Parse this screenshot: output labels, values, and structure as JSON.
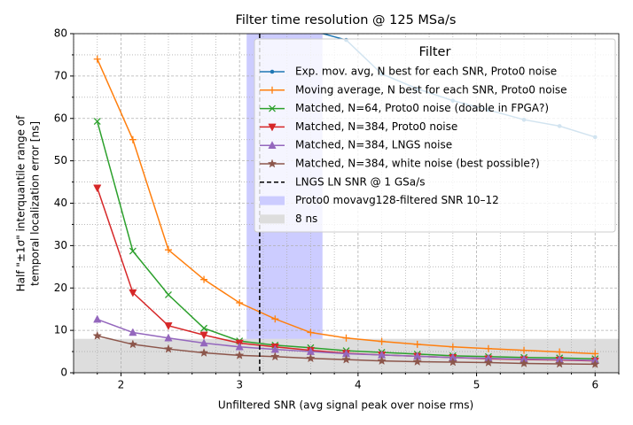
{
  "chart_data": {
    "type": "line",
    "title": "Filter time resolution @ 125 MSa/s",
    "xlabel": "Unfiltered SNR (avg signal peak over noise rms)",
    "ylabel": [
      "Half \"±1σ\" interquantile range of",
      "temporal localization error [ns]"
    ],
    "x": [
      1.8,
      2.1,
      2.4,
      2.7,
      3.0,
      3.3,
      3.6,
      3.9,
      4.2,
      4.5,
      4.8,
      5.1,
      5.4,
      5.7,
      6.0
    ],
    "series": [
      {
        "name": "Exp. mov. avg, N best for each SNR, Proto0 noise",
        "color": "#1f77b4",
        "marker": "point",
        "values": [
          null,
          null,
          null,
          null,
          null,
          null,
          80.8,
          78.5,
          70.5,
          67.0,
          64.2,
          62.0,
          59.7,
          58.2,
          55.6
        ]
      },
      {
        "name": "Moving average, N best for each SNR, Proto0 noise",
        "color": "#ff7f0e",
        "marker": "plus",
        "values": [
          74.0,
          55.0,
          29.0,
          22.0,
          16.5,
          12.7,
          9.5,
          8.2,
          7.4,
          6.7,
          6.1,
          5.7,
          5.3,
          4.9,
          4.5
        ]
      },
      {
        "name": "Matched, N=64, Proto0 noise (doable in FPGA?)",
        "color": "#2ca02c",
        "marker": "x",
        "values": [
          59.3,
          28.7,
          18.4,
          10.5,
          7.5,
          6.5,
          5.9,
          5.2,
          4.8,
          4.4,
          4.0,
          3.8,
          3.6,
          3.5,
          3.3
        ]
      },
      {
        "name": "Matched, N=384, Proto0 noise",
        "color": "#d62728",
        "marker": "tri-down",
        "values": [
          43.6,
          18.9,
          11.1,
          8.9,
          7.0,
          6.1,
          5.3,
          4.6,
          4.2,
          3.9,
          3.6,
          3.3,
          3.1,
          3.0,
          2.8
        ]
      },
      {
        "name": "Matched, N=384, LNGS noise",
        "color": "#9467bd",
        "marker": "tri-up",
        "values": [
          12.6,
          9.5,
          8.2,
          7.0,
          6.1,
          5.5,
          5.0,
          4.5,
          4.2,
          3.9,
          3.6,
          3.4,
          3.2,
          3.1,
          2.9
        ]
      },
      {
        "name": "Matched, N=384, white noise (best possible?)",
        "color": "#8c564b",
        "marker": "star",
        "values": [
          8.7,
          6.7,
          5.6,
          4.7,
          4.1,
          3.8,
          3.4,
          3.1,
          2.8,
          2.6,
          2.5,
          2.4,
          2.2,
          2.1,
          2.0
        ]
      }
    ],
    "vlines": [
      {
        "name": "LNGS LN SNR @ 1 GSa/s",
        "x": 3.17,
        "color": "#000000"
      }
    ],
    "spans": [
      {
        "name": "Proto0 movavg128-filtered SNR 10–12",
        "axis": "x",
        "range": [
          3.06,
          3.7
        ],
        "color": "#ccccff"
      },
      {
        "name": "8 ns",
        "axis": "y",
        "range": [
          0,
          8
        ],
        "color": "#dddddd"
      }
    ],
    "legend_title": "Filter",
    "legend": "upper right",
    "xlim": [
      1.6,
      6.2
    ],
    "ylim": [
      0,
      80
    ],
    "xticks": [
      2,
      3,
      4,
      5,
      6
    ],
    "yticks": [
      0,
      10,
      20,
      30,
      40,
      50,
      60,
      70,
      80
    ],
    "xminorticks": [
      1.6,
      1.8,
      2.2,
      2.4,
      2.6,
      2.8,
      3.2,
      3.4,
      3.6,
      3.8,
      4.2,
      4.4,
      4.6,
      4.8,
      5.2,
      5.4,
      5.6,
      5.8,
      6.2
    ],
    "yminorticks": [
      5,
      15,
      25,
      35,
      45,
      55,
      65,
      75
    ],
    "grid": true
  }
}
